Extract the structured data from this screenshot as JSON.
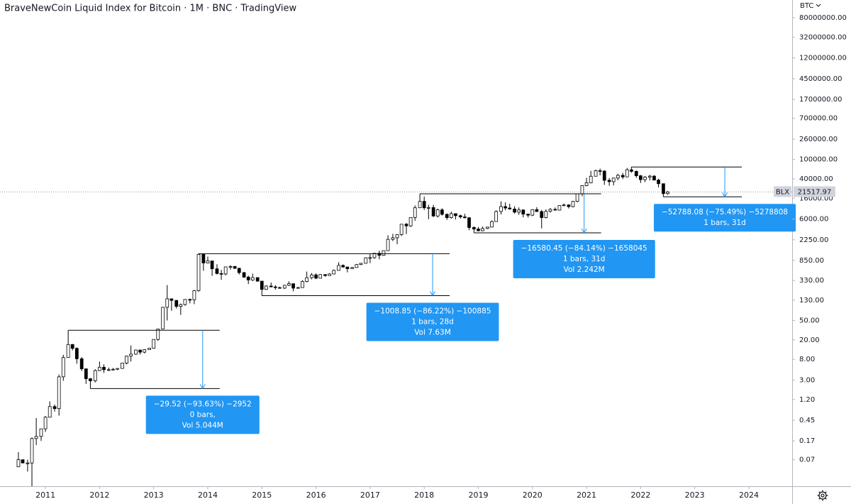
{
  "chart_data": {
    "type": "candlestick",
    "title": "BraveNewCoin Liquid Index for Bitcoin · 1M · BNC · TradingView",
    "currency": "BTC",
    "symbol": "BLX",
    "log_scale": true,
    "grid": false,
    "up_color": "#ffffff",
    "down_color": "#000000",
    "annotation_color": "#2196f3",
    "xlim": [
      2010.16,
      2024.8
    ],
    "xticks": [
      2011,
      2012,
      2013,
      2014,
      2015,
      2016,
      2017,
      2018,
      2019,
      2020,
      2021,
      2022,
      2023,
      2024
    ],
    "ylim": [
      0.02,
      185000000
    ],
    "yticks": [
      {
        "value": 80000000,
        "label": "80000000.00"
      },
      {
        "value": 32000000,
        "label": "32000000.00"
      },
      {
        "value": 12000000,
        "label": "12000000.00"
      },
      {
        "value": 4500000,
        "label": "4500000.00"
      },
      {
        "value": 1700000,
        "label": "1700000.00"
      },
      {
        "value": 700000,
        "label": "700000.00"
      },
      {
        "value": 260000,
        "label": "260000.00"
      },
      {
        "value": 100000,
        "label": "100000.00"
      },
      {
        "value": 40000,
        "label": "40000.00"
      },
      {
        "value": 16000,
        "label": "16000.00"
      },
      {
        "value": 6000,
        "label": "6000.00"
      },
      {
        "value": 2250,
        "label": "2250.00"
      },
      {
        "value": 850,
        "label": "850.00"
      },
      {
        "value": 330,
        "label": "330.00"
      },
      {
        "value": 130,
        "label": "130.00"
      },
      {
        "value": 50,
        "label": "50.00"
      },
      {
        "value": 20,
        "label": "20.00"
      },
      {
        "value": 8,
        "label": "8.00"
      },
      {
        "value": 3,
        "label": "3.00"
      },
      {
        "value": 1.2,
        "label": "1.20"
      },
      {
        "value": 0.45,
        "label": "0.45"
      },
      {
        "value": 0.17,
        "label": "0.17"
      },
      {
        "value": 0.07,
        "label": "0.07"
      }
    ],
    "x": [
      2010.5,
      2010.58,
      2010.67,
      2010.75,
      2010.83,
      2010.92,
      2011.0,
      2011.08,
      2011.17,
      2011.25,
      2011.33,
      2011.42,
      2011.5,
      2011.58,
      2011.67,
      2011.75,
      2011.83,
      2011.92,
      2012.0,
      2012.08,
      2012.17,
      2012.25,
      2012.33,
      2012.42,
      2012.5,
      2012.58,
      2012.67,
      2012.75,
      2012.83,
      2012.92,
      2013.0,
      2013.08,
      2013.17,
      2013.25,
      2013.33,
      2013.42,
      2013.5,
      2013.58,
      2013.67,
      2013.75,
      2013.83,
      2013.92,
      2014.0,
      2014.08,
      2014.17,
      2014.25,
      2014.33,
      2014.42,
      2014.5,
      2014.58,
      2014.67,
      2014.75,
      2014.83,
      2014.92,
      2015.0,
      2015.08,
      2015.17,
      2015.25,
      2015.33,
      2015.42,
      2015.5,
      2015.58,
      2015.67,
      2015.75,
      2015.83,
      2015.92,
      2016.0,
      2016.08,
      2016.17,
      2016.25,
      2016.33,
      2016.42,
      2016.5,
      2016.58,
      2016.67,
      2016.75,
      2016.83,
      2016.92,
      2017.0,
      2017.08,
      2017.17,
      2017.25,
      2017.33,
      2017.42,
      2017.5,
      2017.58,
      2017.67,
      2017.75,
      2017.83,
      2017.92,
      2018.0,
      2018.08,
      2018.17,
      2018.25,
      2018.33,
      2018.42,
      2018.5,
      2018.58,
      2018.67,
      2018.75,
      2018.83,
      2018.92,
      2019.0,
      2019.08,
      2019.17,
      2019.25,
      2019.33,
      2019.42,
      2019.5,
      2019.58,
      2019.67,
      2019.75,
      2019.83,
      2019.92,
      2020.0,
      2020.08,
      2020.17,
      2020.25,
      2020.33,
      2020.42,
      2020.5,
      2020.58,
      2020.67,
      2020.75,
      2020.83,
      2020.92,
      2021.0,
      2021.08,
      2021.17,
      2021.25,
      2021.33,
      2021.42,
      2021.5,
      2021.58,
      2021.67,
      2021.75,
      2021.83,
      2021.92,
      2022.0,
      2022.08,
      2022.17,
      2022.25,
      2022.33,
      2022.42,
      2022.5
    ],
    "open": [
      0.05,
      0.07,
      0.06,
      0.06,
      0.19,
      0.21,
      0.3,
      0.52,
      0.86,
      0.78,
      3.5,
      8.7,
      16.1,
      13.4,
      8.2,
      5.1,
      3.2,
      2.9,
      4.7,
      5.5,
      4.9,
      4.9,
      5.0,
      5.2,
      6.7,
      9.3,
      10.2,
      12.4,
      11.2,
      12.6,
      13.5,
      20.4,
      33.4,
      93,
      139,
      129,
      97,
      106,
      135,
      133,
      204,
      1130,
      754,
      829,
      573,
      458,
      448,
      627,
      640,
      586,
      478,
      388,
      338,
      378,
      320,
      217,
      254,
      244,
      236,
      230,
      263,
      284,
      230,
      236,
      314,
      377,
      430,
      368,
      437,
      416,
      448,
      531,
      673,
      624,
      575,
      609,
      700,
      742,
      963,
      970,
      1190,
      1080,
      1348,
      2300,
      2480,
      2875,
      4700,
      4340,
      6450,
      10200,
      13800,
      10200,
      10300,
      6930,
      9240,
      7490,
      6400,
      7730,
      7030,
      6630,
      6370,
      4020,
      3740,
      3450,
      3850,
      4100,
      5320,
      8560,
      10800,
      10090,
      9630,
      8290,
      9200,
      7560,
      7190,
      9350,
      8540,
      6410,
      8630,
      9450,
      9140,
      11350,
      11650,
      10780,
      13800,
      19700,
      29000,
      33100,
      45200,
      58800,
      57700,
      37300,
      35000,
      41500,
      47100,
      43800,
      61300,
      57000,
      46200,
      38500,
      43200,
      45500,
      37700,
      31800,
      19900
    ],
    "high": [
      0.1,
      0.07,
      0.07,
      0.2,
      0.5,
      0.3,
      0.55,
      1.1,
      0.95,
      3.9,
      9.9,
      31.53,
      16.5,
      14.1,
      8.9,
      5.2,
      3.3,
      5.0,
      7.2,
      6.3,
      5.4,
      5.3,
      5.2,
      6.8,
      9.5,
      15.4,
      12.6,
      12.6,
      12.8,
      13.8,
      20.6,
      33.5,
      95,
      266,
      140,
      130,
      111,
      136,
      140,
      211,
      1170.09,
      1160,
      1020,
      843,
      710,
      545,
      630,
      680,
      655,
      600,
      495,
      414,
      455,
      385,
      321,
      263,
      300,
      264,
      246,
      268,
      317,
      285,
      244,
      335,
      503,
      468,
      462,
      447,
      440,
      467,
      555,
      780,
      705,
      630,
      628,
      720,
      755,
      980,
      1155,
      1212,
      1345,
      1353,
      2790,
      2980,
      2930,
      4760,
      4980,
      6470,
      11400,
      19705.8,
      17300,
      11800,
      11700,
      9770,
      9990,
      7780,
      8500,
      7760,
      7410,
      7680,
      6570,
      4230,
      4100,
      4200,
      4120,
      5630,
      9070,
      13800,
      13200,
      12330,
      10940,
      10370,
      9510,
      7700,
      9560,
      10500,
      9190,
      9450,
      10070,
      10370,
      11440,
      12470,
      12080,
      14100,
      19750,
      29300,
      41950,
      58330,
      61700,
      64800,
      59500,
      41300,
      42300,
      50500,
      52900,
      67000,
      69927,
      59100,
      47990,
      45800,
      48200,
      47450,
      40000,
      31900,
      22500
    ],
    "low": [
      0.05,
      0.06,
      0.04,
      0.02,
      0.14,
      0.17,
      0.26,
      0.52,
      0.68,
      0.56,
      2.9,
      8.7,
      12.2,
      6.5,
      4.6,
      2.5,
      2.01,
      2.7,
      4.6,
      4.2,
      4.6,
      4.7,
      4.8,
      5.1,
      6.3,
      7.2,
      9.9,
      10.0,
      10.6,
      12.5,
      13.2,
      19.1,
      33,
      50,
      79,
      88,
      65,
      100,
      112,
      108,
      195,
      522,
      740,
      410,
      440,
      340,
      420,
      553,
      567,
      438,
      370,
      278,
      323,
      310,
      161.24,
      212,
      239,
      214,
      228,
      221,
      253,
      198,
      225,
      236,
      302,
      350,
      350,
      365,
      394,
      414,
      445,
      530,
      600,
      485,
      570,
      603,
      680,
      740,
      750,
      914,
      895,
      1060,
      1340,
      2120,
      1830,
      2690,
      2950,
      4120,
      5500,
      10100,
      9200,
      5920,
      6600,
      6450,
      7050,
      5760,
      6090,
      5880,
      6140,
      6180,
      3550,
      3125.3,
      3350,
      3390,
      3740,
      4060,
      5320,
      7460,
      9070,
      9330,
      7740,
      7320,
      6520,
      6420,
      6860,
      8430,
      3850,
      6150,
      8110,
      8910,
      8990,
      10950,
      9870,
      10380,
      13200,
      17600,
      28200,
      32400,
      44950,
      47000,
      30000,
      28800,
      29300,
      37400,
      39600,
      43300,
      53300,
      42000,
      32900,
      34300,
      37200,
      37600,
      26700,
      17139,
      18800
    ],
    "close": [
      0.07,
      0.06,
      0.06,
      0.19,
      0.21,
      0.3,
      0.52,
      0.86,
      0.78,
      3.5,
      8.7,
      16.1,
      13.4,
      8.2,
      5.1,
      3.2,
      2.9,
      4.7,
      5.5,
      4.9,
      4.9,
      5.0,
      5.2,
      6.7,
      9.3,
      10.2,
      12.4,
      11.2,
      12.6,
      13.5,
      20.4,
      33.4,
      93,
      139,
      129,
      97,
      106,
      135,
      133,
      204,
      1130,
      754,
      829,
      573,
      458,
      448,
      627,
      640,
      586,
      478,
      388,
      338,
      378,
      320,
      217,
      254,
      244,
      236,
      230,
      263,
      284,
      230,
      236,
      314,
      377,
      430,
      368,
      437,
      416,
      448,
      531,
      673,
      624,
      575,
      609,
      700,
      742,
      963,
      970,
      1190,
      1080,
      1348,
      2300,
      2480,
      2875,
      4700,
      4340,
      6450,
      10200,
      13800,
      10200,
      10300,
      6930,
      9240,
      7490,
      6400,
      7730,
      7030,
      6630,
      6370,
      4020,
      3740,
      3450,
      3850,
      4100,
      5320,
      8560,
      10800,
      10090,
      9630,
      8290,
      9200,
      7560,
      7190,
      9350,
      8540,
      6410,
      8630,
      9450,
      9140,
      11350,
      11650,
      10780,
      13800,
      19700,
      29000,
      33100,
      45200,
      58800,
      57700,
      37300,
      35000,
      41500,
      47100,
      43800,
      61300,
      57000,
      46200,
      38500,
      43200,
      45500,
      37700,
      31800,
      19900,
      21517.97
    ],
    "annotations": [
      {
        "high": 31.53,
        "low": 2.01,
        "x_high": 2011.42,
        "x_low": 2011.83,
        "x_end": 2014.22,
        "lines": [
          "−29.52 (−93.63%) −2952",
          "0 bars,",
          "Vol 5.044M"
        ]
      },
      {
        "high": 1170.09,
        "low": 161.24,
        "x_high": 2013.83,
        "x_low": 2015.0,
        "x_end": 2018.47,
        "lines": [
          "−1008.85 (−86.22%) −100885",
          "1 bars, 28d",
          "Vol 7.63M"
        ]
      },
      {
        "high": 19705.8,
        "low": 3125.3,
        "x_high": 2017.92,
        "x_low": 2018.92,
        "x_end": 2021.27,
        "lines": [
          "−16580.45 (−84.14%) −1658045",
          "1 bars, 31d",
          "Vol 2.242M"
        ]
      },
      {
        "high": 69927,
        "low": 17139,
        "x_high": 2021.83,
        "x_low": 2022.42,
        "x_end": 2023.87,
        "lines": [
          "−52788.08 (−75.49%) −5278808",
          "1 bars, 31d"
        ]
      }
    ]
  }
}
